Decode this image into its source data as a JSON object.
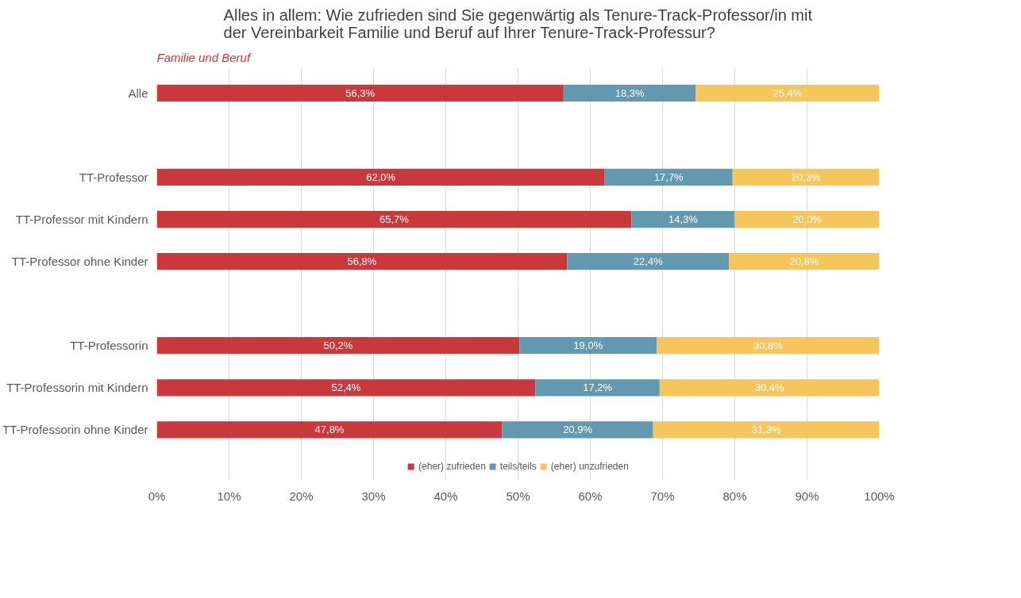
{
  "chart_data": {
    "type": "bar",
    "orientation": "horizontal",
    "stacked": true,
    "title": "Alles in allem: Wie zufrieden sind Sie gegenwärtig als Tenure-Track-Professor/in mit\nder Vereinbarkeit Familie und Beruf auf Ihrer Tenure-Track-Professur?",
    "annotations": [
      "Familie und Beruf"
    ],
    "categories": [
      "Alle",
      null,
      "TT-Professor",
      "TT-Professor mit Kindern",
      "TT-Professor ohne Kinder",
      null,
      "TT-Professorin",
      "TT-Professorin mit Kindern",
      "TT-Professorin ohne Kinder"
    ],
    "series": [
      {
        "name": "(eher) zufrieden",
        "color": "#c9393b",
        "values": [
          56.3,
          null,
          62.0,
          65.7,
          56.8,
          null,
          50.2,
          52.4,
          47.8
        ],
        "value_labels": [
          "56,3%",
          null,
          "62,0%",
          "65,7%",
          "56,8%",
          null,
          "50,2%",
          "52,4%",
          "47,8%"
        ]
      },
      {
        "name": "teils/teils",
        "color": "#6399b0",
        "values": [
          18.3,
          null,
          17.7,
          14.3,
          22.4,
          null,
          19.0,
          17.2,
          20.9
        ],
        "value_labels": [
          "18,3%",
          null,
          "17,7%",
          "14,3%",
          "22,4%",
          null,
          "19,0%",
          "17,2%",
          "20,9%"
        ]
      },
      {
        "name": "(eher) unzufrieden",
        "color": "#f6c55c",
        "values": [
          25.4,
          null,
          20.3,
          20.0,
          20.8,
          null,
          30.8,
          30.4,
          31.3
        ],
        "value_labels": [
          "25,4%",
          null,
          "20,3%",
          "20,0%",
          "20,8%",
          null,
          "30,8%",
          "30,4%",
          "31,3%"
        ]
      }
    ],
    "xlim": [
      0,
      100
    ],
    "xticks": [
      {
        "value": 0,
        "label": "0%"
      },
      {
        "value": 10,
        "label": "10%"
      },
      {
        "value": 20,
        "label": "20%"
      },
      {
        "value": 30,
        "label": "30%"
      },
      {
        "value": 40,
        "label": "40%"
      },
      {
        "value": 50,
        "label": "50%"
      },
      {
        "value": 60,
        "label": "60%"
      },
      {
        "value": 70,
        "label": "70%"
      },
      {
        "value": 80,
        "label": "80%"
      },
      {
        "value": 90,
        "label": "90%"
      },
      {
        "value": 100,
        "label": "100%"
      }
    ],
    "grid": "x",
    "legend": "bottom"
  }
}
